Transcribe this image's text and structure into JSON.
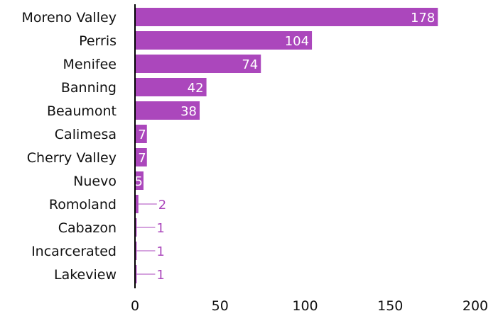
{
  "chart_data": {
    "type": "bar",
    "orientation": "horizontal",
    "categories": [
      "Moreno Valley",
      "Perris",
      "Menifee",
      "Banning",
      "Beaumont",
      "Calimesa",
      "Cherry Valley",
      "Nuevo",
      "Romoland",
      "Cabazon",
      "Incarcerated",
      "Lakeview"
    ],
    "values": [
      178,
      104,
      74,
      42,
      38,
      7,
      7,
      5,
      2,
      1,
      1,
      1
    ],
    "x_ticks": [
      0,
      50,
      100,
      150,
      200
    ],
    "xlim": [
      0,
      200
    ],
    "title": "",
    "xlabel": "",
    "ylabel": "",
    "grid": false,
    "legend": "none",
    "colors": {
      "bar": "#ab47bc",
      "label_inside": "#ffffff",
      "label_outside": "#ab47bc",
      "axis": "#000000",
      "text": "#111111"
    }
  }
}
